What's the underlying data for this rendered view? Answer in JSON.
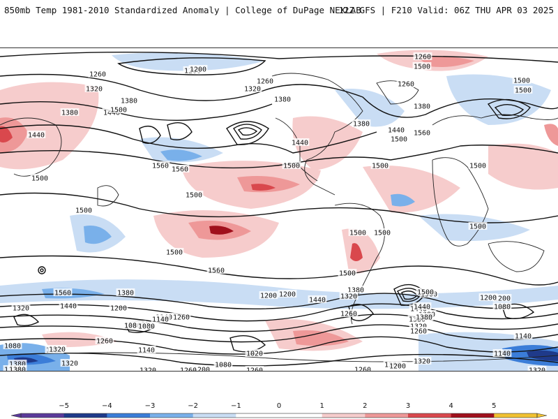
{
  "header": {
    "title": "850mb Temp 1981-2010 Standardized Anomaly | College of DuPage NEXLAB",
    "run_info": "12Z GFS | F210 Valid: 06Z THU APR 03 2025"
  },
  "colors": {
    "neg5": "#5b3a9a",
    "neg4": "#1f3a8a",
    "neg3": "#3b7dd8",
    "neg2": "#79b0ea",
    "neg1": "#c9ddf4",
    "zero": "#ffffff",
    "pos1": "#f6cccc",
    "pos2": "#ee9898",
    "pos3": "#d9484d",
    "pos4": "#a0101c",
    "pos5": "#f1c232",
    "contour": "#111111",
    "coast": "#222222"
  },
  "colorbar": {
    "ticks": [
      "−5",
      "−4",
      "−3",
      "−2",
      "−1",
      "0",
      "1",
      "2",
      "3",
      "4",
      "5"
    ]
  },
  "contour_labels": [
    "1260",
    "1200",
    "1320",
    "1260",
    "1440",
    "1380",
    "1500",
    "1440",
    "1380",
    "1260",
    "1320",
    "1380",
    "1200",
    "1260",
    "1560",
    "1500",
    "1500",
    "1440",
    "1380",
    "1440",
    "1560",
    "1500",
    "1500",
    "1380",
    "1500",
    "1500",
    "1560",
    "1500",
    "1500",
    "1500",
    "1500",
    "1500",
    "1500",
    "1560",
    "1500",
    "1500",
    "1500",
    "1380",
    "1320",
    "1440",
    "1560",
    "1380",
    "1200",
    "1440",
    "1200",
    "1500",
    "1380",
    "1200",
    "1440",
    "1320",
    "1260",
    "1260",
    "1080",
    "1140",
    "1200",
    "1080",
    "1260",
    "1320",
    "1140",
    "1020",
    "1080",
    "1140",
    "1320",
    "1260",
    "1320",
    "1200",
    "1080",
    "1200",
    "1260",
    "1320",
    "1380",
    "1320",
    "1380",
    "1260",
    "1140",
    "1080",
    "1080",
    "1140",
    "1320",
    "1380",
    "1200",
    "1320",
    "1260",
    "1380",
    "1500",
    "1440",
    "1200",
    "1320"
  ]
}
